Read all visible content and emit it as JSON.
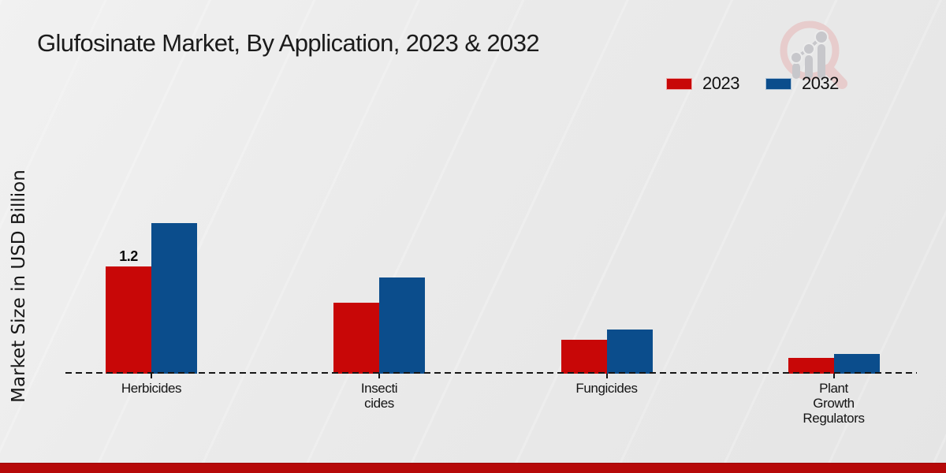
{
  "title": "Glufosinate Market, By Application, 2023 & 2032",
  "y_axis_label": "Market Size in USD Billion",
  "legend": {
    "items": [
      {
        "label": "2023",
        "color": "#c80707"
      },
      {
        "label": "2032",
        "color": "#0b4d8c"
      }
    ]
  },
  "brand": {
    "logo_icon": "growth-chart-magnifier",
    "logo_ring_color": "#e7cccc",
    "logo_bar_color": "#c7c7cb",
    "footer_bar_color": "#b60909"
  },
  "chart_data": {
    "type": "bar",
    "title": "Glufosinate Market, By Application, 2023 & 2032",
    "xlabel": "",
    "ylabel": "Market Size in USD Billion",
    "categories": [
      "Herbicides",
      "Insecticides",
      "Fungicides",
      "Plant Growth Regulators"
    ],
    "category_label_lines": [
      [
        "Herbicides"
      ],
      [
        "Insecti",
        "cides"
      ],
      [
        "Fungicides"
      ],
      [
        "Plant",
        "Growth",
        "Regulators"
      ]
    ],
    "series": [
      {
        "name": "2023",
        "color": "#c80707",
        "values": [
          1.2,
          0.79,
          0.38,
          0.18
        ],
        "value_labels": [
          "1.2",
          "",
          "",
          ""
        ]
      },
      {
        "name": "2032",
        "color": "#0b4d8c",
        "values": [
          1.69,
          1.08,
          0.49,
          0.22
        ],
        "value_labels": [
          "",
          "",
          "",
          ""
        ]
      }
    ],
    "ylim": [
      0,
      1.8
    ],
    "grid": false,
    "y_ticks_visible": false,
    "legend_position": "top-right",
    "baseline_style": "dashed",
    "units": "USD Billion"
  }
}
